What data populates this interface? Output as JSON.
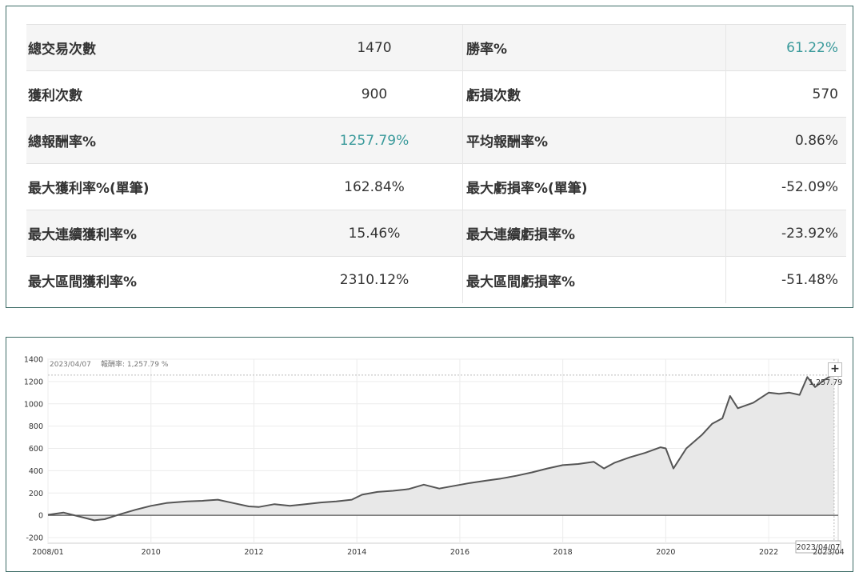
{
  "stats": {
    "rows": [
      {
        "label1": "總交易次數",
        "value1": "1470",
        "label2": "勝率%",
        "value2": "61.22%"
      },
      {
        "label1": "獲利次數",
        "value1": "900",
        "label2": "虧損次數",
        "value2": "570"
      },
      {
        "label1": "總報酬率%",
        "value1": "1257.79%",
        "label2": "平均報酬率%",
        "value2": "0.86%"
      },
      {
        "label1": "最大獲利率%(單筆)",
        "value1": "162.84%",
        "label2": "最大虧損率%(單筆)",
        "value2": "-52.09%"
      },
      {
        "label1": "最大連續獲利率%",
        "value1": "15.46%",
        "label2": "最大連續虧損率%",
        "value2": "-23.92%"
      },
      {
        "label1": "最大區間獲利率%",
        "value1": "2310.12%",
        "label2": "最大區間虧損率%",
        "value2": "-51.48%"
      }
    ],
    "highlight_color": "#3a9a9b"
  },
  "chart": {
    "info_date": "2023/04/07",
    "info_label": "報酬率: 1,257.79 %",
    "last_value_label": "1,257.79",
    "crosshair_date_label": "2023/04/07",
    "edge_tick_label": "2023/04",
    "zoom_button_label": "+",
    "line_color": "#555555",
    "fill_color": "#e8e8e8"
  },
  "chart_data": {
    "type": "area",
    "title": "",
    "xlabel": "",
    "ylabel": "",
    "ylim": [
      -250,
      1400
    ],
    "xlim": [
      2008.0,
      2023.35
    ],
    "y_ticks": [
      1400,
      1200,
      1000,
      800,
      600,
      400,
      200,
      0,
      -200
    ],
    "x_ticks": [
      {
        "label": "2008/01",
        "x": 2008.0
      },
      {
        "label": "2010",
        "x": 2010.0
      },
      {
        "label": "2012",
        "x": 2012.0
      },
      {
        "label": "2014",
        "x": 2014.0
      },
      {
        "label": "2016",
        "x": 2016.0
      },
      {
        "label": "2018",
        "x": 2018.0
      },
      {
        "label": "2020",
        "x": 2020.0
      },
      {
        "label": "2022",
        "x": 2022.0
      }
    ],
    "grid": true,
    "series": [
      {
        "name": "",
        "points": [
          [
            2008.0,
            5
          ],
          [
            2008.3,
            25
          ],
          [
            2008.6,
            -10
          ],
          [
            2008.9,
            -45
          ],
          [
            2009.1,
            -35
          ],
          [
            2009.4,
            10
          ],
          [
            2009.7,
            50
          ],
          [
            2010.0,
            85
          ],
          [
            2010.3,
            110
          ],
          [
            2010.7,
            125
          ],
          [
            2011.0,
            130
          ],
          [
            2011.3,
            140
          ],
          [
            2011.6,
            110
          ],
          [
            2011.9,
            80
          ],
          [
            2012.1,
            75
          ],
          [
            2012.4,
            100
          ],
          [
            2012.7,
            85
          ],
          [
            2013.0,
            100
          ],
          [
            2013.3,
            115
          ],
          [
            2013.6,
            125
          ],
          [
            2013.9,
            140
          ],
          [
            2014.1,
            185
          ],
          [
            2014.4,
            210
          ],
          [
            2014.7,
            220
          ],
          [
            2015.0,
            235
          ],
          [
            2015.3,
            275
          ],
          [
            2015.6,
            240
          ],
          [
            2015.9,
            265
          ],
          [
            2016.2,
            290
          ],
          [
            2016.5,
            310
          ],
          [
            2016.8,
            330
          ],
          [
            2017.1,
            355
          ],
          [
            2017.4,
            385
          ],
          [
            2017.7,
            420
          ],
          [
            2018.0,
            450
          ],
          [
            2018.3,
            460
          ],
          [
            2018.6,
            480
          ],
          [
            2018.8,
            420
          ],
          [
            2019.0,
            470
          ],
          [
            2019.3,
            520
          ],
          [
            2019.6,
            560
          ],
          [
            2019.9,
            610
          ],
          [
            2020.0,
            600
          ],
          [
            2020.15,
            420
          ],
          [
            2020.4,
            600
          ],
          [
            2020.7,
            720
          ],
          [
            2020.9,
            820
          ],
          [
            2021.1,
            870
          ],
          [
            2021.25,
            1070
          ],
          [
            2021.4,
            960
          ],
          [
            2021.7,
            1010
          ],
          [
            2022.0,
            1100
          ],
          [
            2022.2,
            1090
          ],
          [
            2022.4,
            1100
          ],
          [
            2022.6,
            1080
          ],
          [
            2022.75,
            1240
          ],
          [
            2022.9,
            1150
          ],
          [
            2023.1,
            1220
          ],
          [
            2023.27,
            1270
          ]
        ]
      }
    ]
  }
}
